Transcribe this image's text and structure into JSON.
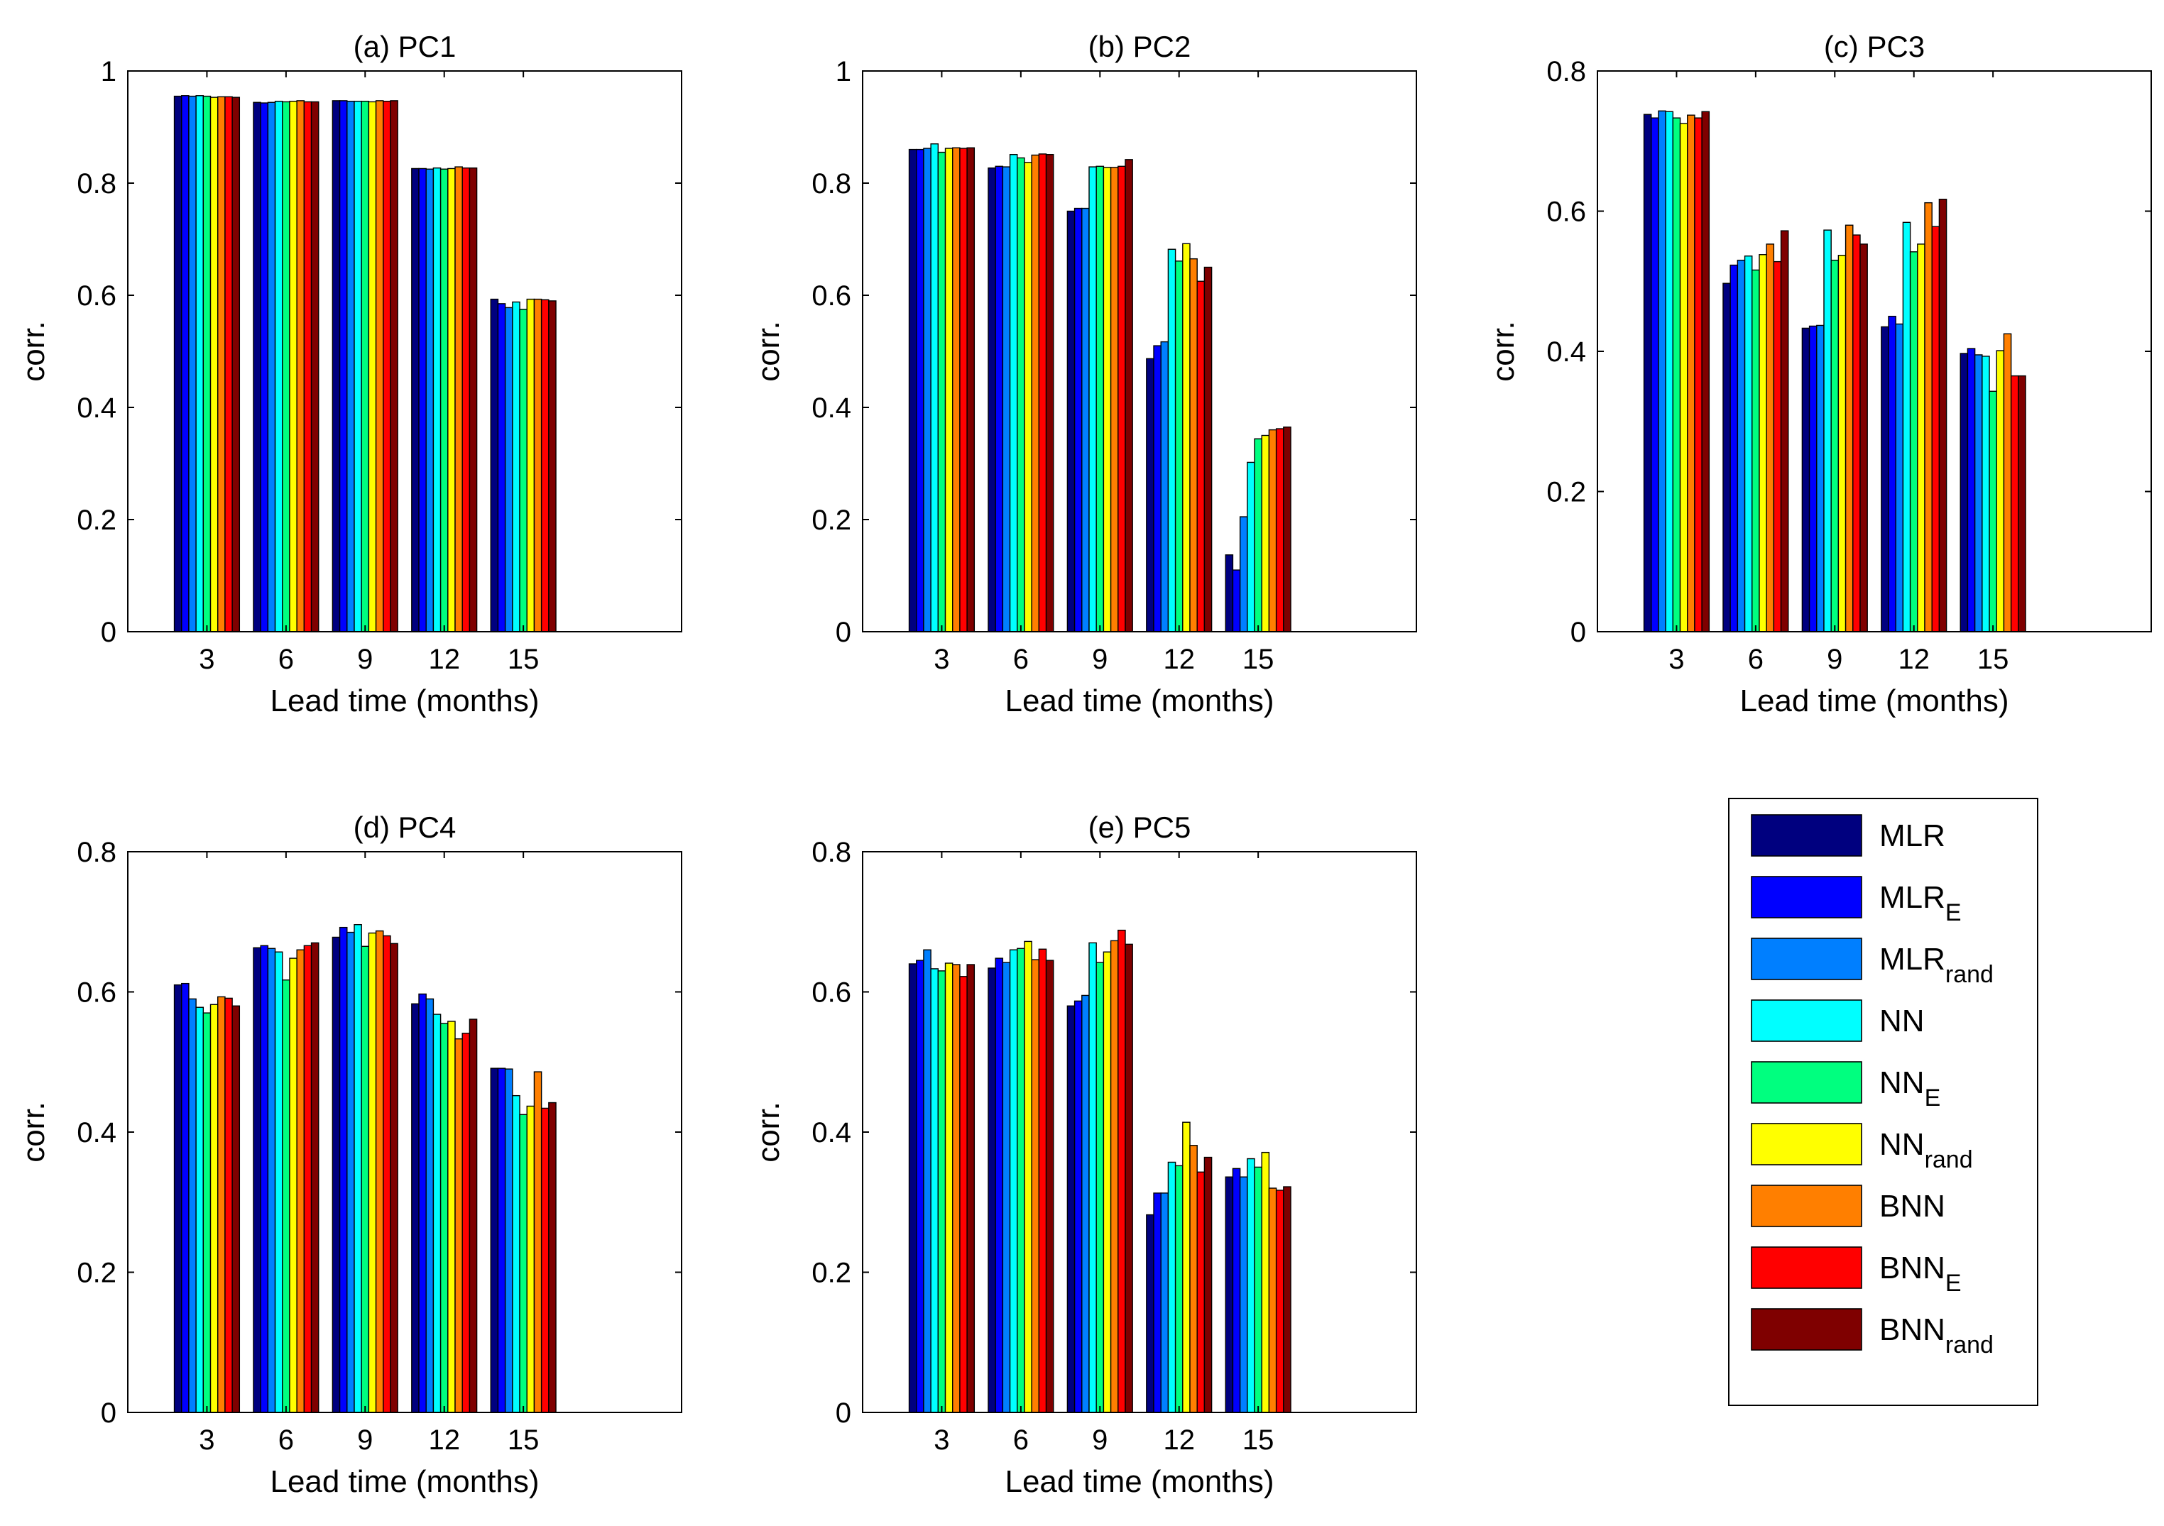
{
  "figure": {
    "ylabel_all": "corr.",
    "xlabel_all": "Lead time (months)"
  },
  "legend": {
    "entries": [
      {
        "base": "MLR",
        "sub": "",
        "color": "#00007f"
      },
      {
        "base": "MLR",
        "sub": "E",
        "color": "#0000ff"
      },
      {
        "base": "MLR",
        "sub": "rand",
        "color": "#007fff"
      },
      {
        "base": "NN",
        "sub": "",
        "color": "#00ffff"
      },
      {
        "base": "NN",
        "sub": "E",
        "color": "#00ff7f"
      },
      {
        "base": "NN",
        "sub": "rand",
        "color": "#ffff00"
      },
      {
        "base": "BNN",
        "sub": "",
        "color": "#ff7f00"
      },
      {
        "base": "BNN",
        "sub": "E",
        "color": "#ff0000"
      },
      {
        "base": "BNN",
        "sub": "rand",
        "color": "#7f0000"
      }
    ]
  },
  "chart_data": [
    {
      "type": "bar",
      "title": "(a) PC1",
      "xlabel": "Lead time (months)",
      "ylabel": "corr.",
      "categories": [
        "3",
        "6",
        "9",
        "12",
        "15"
      ],
      "ylim": [
        0,
        1
      ],
      "yticks": [
        "0",
        "0.2",
        "0.4",
        "0.6",
        "0.8",
        "1"
      ],
      "series": [
        {
          "name": "MLR",
          "values": [
            0.955,
            0.944,
            0.947,
            0.826,
            0.593
          ]
        },
        {
          "name": "MLR_E",
          "values": [
            0.956,
            0.943,
            0.947,
            0.826,
            0.585
          ]
        },
        {
          "name": "MLR_rand",
          "values": [
            0.955,
            0.944,
            0.946,
            0.825,
            0.578
          ]
        },
        {
          "name": "NN",
          "values": [
            0.956,
            0.946,
            0.946,
            0.827,
            0.588
          ]
        },
        {
          "name": "NN_E",
          "values": [
            0.955,
            0.945,
            0.946,
            0.825,
            0.575
          ]
        },
        {
          "name": "NN_rand",
          "values": [
            0.953,
            0.946,
            0.945,
            0.826,
            0.593
          ]
        },
        {
          "name": "BNN",
          "values": [
            0.954,
            0.947,
            0.947,
            0.829,
            0.593
          ]
        },
        {
          "name": "BNN_E",
          "values": [
            0.954,
            0.945,
            0.946,
            0.827,
            0.592
          ]
        },
        {
          "name": "BNN_rand",
          "values": [
            0.953,
            0.945,
            0.947,
            0.827,
            0.59
          ]
        }
      ]
    },
    {
      "type": "bar",
      "title": "(b) PC2",
      "xlabel": "Lead time (months)",
      "ylabel": "corr.",
      "categories": [
        "3",
        "6",
        "9",
        "12",
        "15"
      ],
      "ylim": [
        0,
        1
      ],
      "yticks": [
        "0",
        "0.2",
        "0.4",
        "0.6",
        "0.8",
        "1"
      ],
      "series": [
        {
          "name": "MLR",
          "values": [
            0.86,
            0.827,
            0.75,
            0.487,
            0.137
          ]
        },
        {
          "name": "MLR_E",
          "values": [
            0.86,
            0.83,
            0.755,
            0.51,
            0.11
          ]
        },
        {
          "name": "MLR_rand",
          "values": [
            0.862,
            0.829,
            0.755,
            0.517,
            0.205
          ]
        },
        {
          "name": "NN",
          "values": [
            0.87,
            0.851,
            0.829,
            0.682,
            0.302
          ]
        },
        {
          "name": "NN_E",
          "values": [
            0.855,
            0.845,
            0.83,
            0.661,
            0.344
          ]
        },
        {
          "name": "NN_rand",
          "values": [
            0.862,
            0.837,
            0.828,
            0.692,
            0.35
          ]
        },
        {
          "name": "BNN",
          "values": [
            0.863,
            0.85,
            0.828,
            0.665,
            0.36
          ]
        },
        {
          "name": "BNN_E",
          "values": [
            0.862,
            0.852,
            0.83,
            0.625,
            0.362
          ]
        },
        {
          "name": "BNN_rand",
          "values": [
            0.863,
            0.851,
            0.842,
            0.65,
            0.365
          ]
        }
      ]
    },
    {
      "type": "bar",
      "title": "(c) PC3",
      "xlabel": "Lead time (months)",
      "ylabel": "corr.",
      "categories": [
        "3",
        "6",
        "9",
        "12",
        "15"
      ],
      "ylim": [
        0,
        0.8
      ],
      "yticks": [
        "0",
        "0.2",
        "0.4",
        "0.6",
        "0.8"
      ],
      "series": [
        {
          "name": "MLR",
          "values": [
            0.738,
            0.497,
            0.433,
            0.435,
            0.397
          ]
        },
        {
          "name": "MLR_E",
          "values": [
            0.733,
            0.523,
            0.436,
            0.45,
            0.404
          ]
        },
        {
          "name": "MLR_rand",
          "values": [
            0.743,
            0.53,
            0.437,
            0.439,
            0.395
          ]
        },
        {
          "name": "NN",
          "values": [
            0.742,
            0.536,
            0.573,
            0.584,
            0.393
          ]
        },
        {
          "name": "NN_E",
          "values": [
            0.733,
            0.516,
            0.53,
            0.542,
            0.343
          ]
        },
        {
          "name": "NN_rand",
          "values": [
            0.725,
            0.538,
            0.537,
            0.553,
            0.401
          ]
        },
        {
          "name": "BNN",
          "values": [
            0.737,
            0.553,
            0.58,
            0.612,
            0.425
          ]
        },
        {
          "name": "BNN_E",
          "values": [
            0.733,
            0.528,
            0.566,
            0.578,
            0.365
          ]
        },
        {
          "name": "BNN_rand",
          "values": [
            0.742,
            0.572,
            0.553,
            0.617,
            0.365
          ]
        }
      ]
    },
    {
      "type": "bar",
      "title": "(d) PC4",
      "xlabel": "Lead time (months)",
      "ylabel": "corr.",
      "categories": [
        "3",
        "6",
        "9",
        "12",
        "15"
      ],
      "ylim": [
        0,
        0.8
      ],
      "yticks": [
        "0",
        "0.2",
        "0.4",
        "0.6",
        "0.8"
      ],
      "series": [
        {
          "name": "MLR",
          "values": [
            0.61,
            0.663,
            0.678,
            0.583,
            0.491
          ]
        },
        {
          "name": "MLR_E",
          "values": [
            0.612,
            0.666,
            0.692,
            0.597,
            0.491
          ]
        },
        {
          "name": "MLR_rand",
          "values": [
            0.59,
            0.662,
            0.685,
            0.59,
            0.49
          ]
        },
        {
          "name": "NN",
          "values": [
            0.578,
            0.657,
            0.696,
            0.568,
            0.452
          ]
        },
        {
          "name": "NN_E",
          "values": [
            0.57,
            0.617,
            0.665,
            0.555,
            0.425
          ]
        },
        {
          "name": "NN_rand",
          "values": [
            0.582,
            0.648,
            0.684,
            0.558,
            0.437
          ]
        },
        {
          "name": "BNN",
          "values": [
            0.593,
            0.66,
            0.687,
            0.533,
            0.486
          ]
        },
        {
          "name": "BNN_E",
          "values": [
            0.591,
            0.666,
            0.68,
            0.541,
            0.434
          ]
        },
        {
          "name": "BNN_rand",
          "values": [
            0.58,
            0.67,
            0.669,
            0.561,
            0.442
          ]
        }
      ]
    },
    {
      "type": "bar",
      "title": "(e) PC5",
      "xlabel": "Lead time (months)",
      "ylabel": "corr.",
      "categories": [
        "3",
        "6",
        "9",
        "12",
        "15"
      ],
      "ylim": [
        0,
        0.8
      ],
      "yticks": [
        "0",
        "0.2",
        "0.4",
        "0.6",
        "0.8"
      ],
      "series": [
        {
          "name": "MLR",
          "values": [
            0.64,
            0.634,
            0.58,
            0.282,
            0.336
          ]
        },
        {
          "name": "MLR_E",
          "values": [
            0.645,
            0.648,
            0.587,
            0.313,
            0.348
          ]
        },
        {
          "name": "MLR_rand",
          "values": [
            0.66,
            0.642,
            0.595,
            0.313,
            0.336
          ]
        },
        {
          "name": "NN",
          "values": [
            0.633,
            0.66,
            0.67,
            0.357,
            0.362
          ]
        },
        {
          "name": "NN_E",
          "values": [
            0.63,
            0.662,
            0.642,
            0.352,
            0.35
          ]
        },
        {
          "name": "NN_rand",
          "values": [
            0.641,
            0.672,
            0.657,
            0.414,
            0.371
          ]
        },
        {
          "name": "BNN",
          "values": [
            0.639,
            0.646,
            0.673,
            0.381,
            0.32
          ]
        },
        {
          "name": "BNN_E",
          "values": [
            0.622,
            0.661,
            0.688,
            0.343,
            0.317
          ]
        },
        {
          "name": "BNN_rand",
          "values": [
            0.639,
            0.645,
            0.668,
            0.364,
            0.322
          ]
        }
      ]
    }
  ]
}
